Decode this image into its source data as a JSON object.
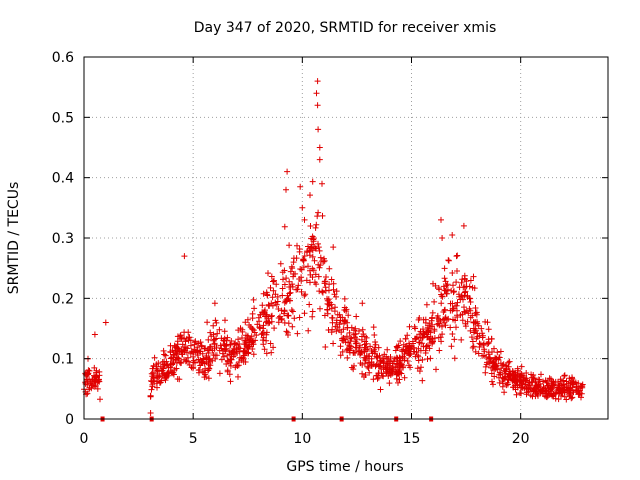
{
  "chart_data": {
    "type": "scatter",
    "title": "Day 347 of 2020, SRMTID for receiver xmis",
    "xlabel": "GPS time / hours",
    "ylabel": "SRMTID / TECUs",
    "xlim": [
      0,
      24
    ],
    "ylim": [
      0,
      0.6
    ],
    "xticks": [
      0,
      5,
      10,
      15,
      20
    ],
    "yticks": [
      0,
      0.1,
      0.2,
      0.3,
      0.4,
      0.5,
      0.6
    ],
    "xtick_labels": [
      "0",
      "5",
      "10",
      "15",
      "20"
    ],
    "ytick_labels": [
      "0",
      "0.1",
      "0.2",
      "0.3",
      "0.4",
      "0.5",
      "0.6"
    ],
    "grid": true,
    "marker": "+",
    "color": "#e00000",
    "zero_markers_x": [
      0.85,
      3.1,
      9.6,
      11.8,
      14.3,
      15.9
    ],
    "profile": [
      [
        0.0,
        0.06
      ],
      [
        0.7,
        0.07
      ],
      [
        0.8,
        0.0
      ],
      [
        3.0,
        0.0
      ],
      [
        3.1,
        0.07
      ],
      [
        4.0,
        0.09
      ],
      [
        4.6,
        0.12
      ],
      [
        5.5,
        0.09
      ],
      [
        6.0,
        0.13
      ],
      [
        6.6,
        0.1
      ],
      [
        7.3,
        0.12
      ],
      [
        8.0,
        0.15
      ],
      [
        8.6,
        0.18
      ],
      [
        9.3,
        0.2
      ],
      [
        9.8,
        0.24
      ],
      [
        10.3,
        0.25
      ],
      [
        10.6,
        0.27
      ],
      [
        11.2,
        0.2
      ],
      [
        11.8,
        0.15
      ],
      [
        12.5,
        0.12
      ],
      [
        13.2,
        0.1
      ],
      [
        14.0,
        0.08
      ],
      [
        14.6,
        0.1
      ],
      [
        15.2,
        0.12
      ],
      [
        16.0,
        0.14
      ],
      [
        16.5,
        0.19
      ],
      [
        17.2,
        0.2
      ],
      [
        17.7,
        0.18
      ],
      [
        18.3,
        0.12
      ],
      [
        19.0,
        0.08
      ],
      [
        20.0,
        0.06
      ],
      [
        21.0,
        0.05
      ],
      [
        22.0,
        0.05
      ],
      [
        22.8,
        0.05
      ]
    ],
    "outliers": [
      [
        10.7,
        0.56
      ],
      [
        10.65,
        0.54
      ],
      [
        10.7,
        0.52
      ],
      [
        10.8,
        0.45
      ],
      [
        10.72,
        0.48
      ],
      [
        9.3,
        0.41
      ],
      [
        9.25,
        0.38
      ],
      [
        10.9,
        0.39
      ],
      [
        10.8,
        0.43
      ],
      [
        10.0,
        0.35
      ],
      [
        10.1,
        0.33
      ],
      [
        16.35,
        0.33
      ],
      [
        16.4,
        0.3
      ],
      [
        17.4,
        0.32
      ],
      [
        4.6,
        0.27
      ],
      [
        1.0,
        0.16
      ],
      [
        0.5,
        0.14
      ],
      [
        3.05,
        0.01
      ]
    ]
  }
}
